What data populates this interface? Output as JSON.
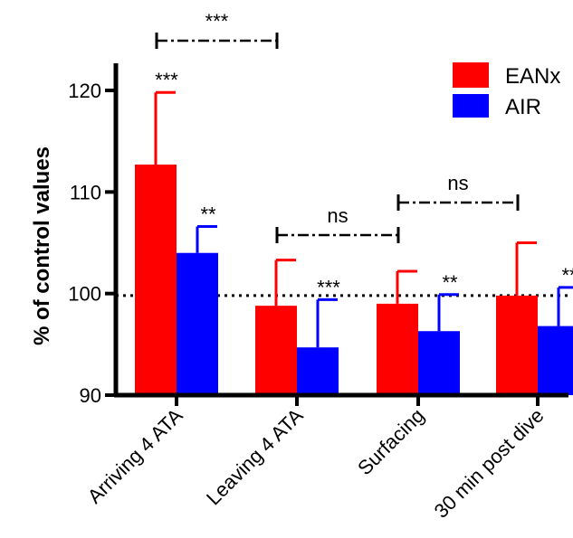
{
  "chart_data": {
    "type": "bar",
    "title": "",
    "xlabel": "",
    "ylabel": "% of control values",
    "ylim": [
      90,
      123
    ],
    "yticks": [
      90,
      100,
      110,
      120
    ],
    "grid": false,
    "legend_position": "top-right",
    "categories": [
      "Arriving 4 ATA",
      "Leaving 4 ATA",
      "Surfacing",
      "30 min post dive"
    ],
    "series": [
      {
        "name": "EANx",
        "color": "#ff0000",
        "values": [
          112.7,
          98.8,
          99.0,
          99.8
        ],
        "error": [
          7.1,
          4.5,
          3.2,
          5.2
        ],
        "significance": [
          "***",
          "",
          "",
          ""
        ]
      },
      {
        "name": "AIR",
        "color": "#0000ff",
        "values": [
          104.0,
          94.7,
          96.3,
          96.8
        ],
        "error": [
          2.6,
          4.7,
          3.6,
          3.8
        ],
        "significance": [
          "**",
          "***",
          "**",
          "**"
        ]
      }
    ],
    "reference_line": {
      "y": 99.8,
      "style": "dotted"
    },
    "comparisons": [
      {
        "from": "Arriving 4 ATA",
        "to": "Leaving 4 ATA",
        "label": "***"
      },
      {
        "from": "Leaving 4 ATA",
        "to": "Surfacing",
        "label": "ns"
      },
      {
        "from": "Surfacing",
        "to": "30 min post dive",
        "label": "ns"
      }
    ]
  }
}
